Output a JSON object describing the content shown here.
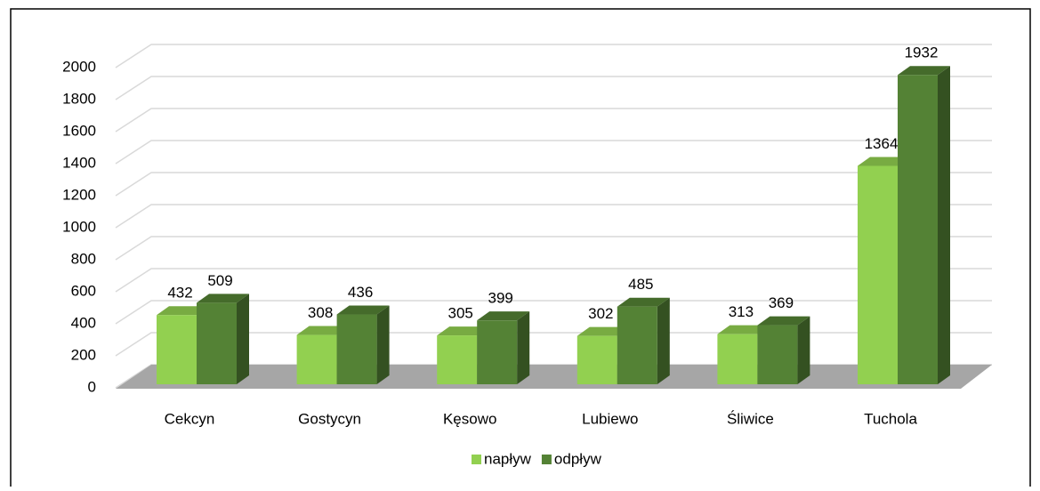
{
  "chart_data": {
    "type": "bar3d",
    "categories": [
      "Cekcyn",
      "Gostycyn",
      "Kęsowo",
      "Lubiewo",
      "Śliwice",
      "Tuchola"
    ],
    "series": [
      {
        "name": "napływ",
        "color": "#92d050",
        "values": [
          432,
          308,
          305,
          302,
          313,
          1364
        ]
      },
      {
        "name": "odpływ",
        "color": "#548235",
        "values": [
          509,
          436,
          399,
          485,
          369,
          1932
        ]
      }
    ],
    "ylim": [
      0,
      2000
    ],
    "yticks": [
      0,
      200,
      400,
      600,
      800,
      1000,
      1200,
      1400,
      1600,
      1800,
      2000
    ],
    "grid": true,
    "legend": "bottom"
  }
}
